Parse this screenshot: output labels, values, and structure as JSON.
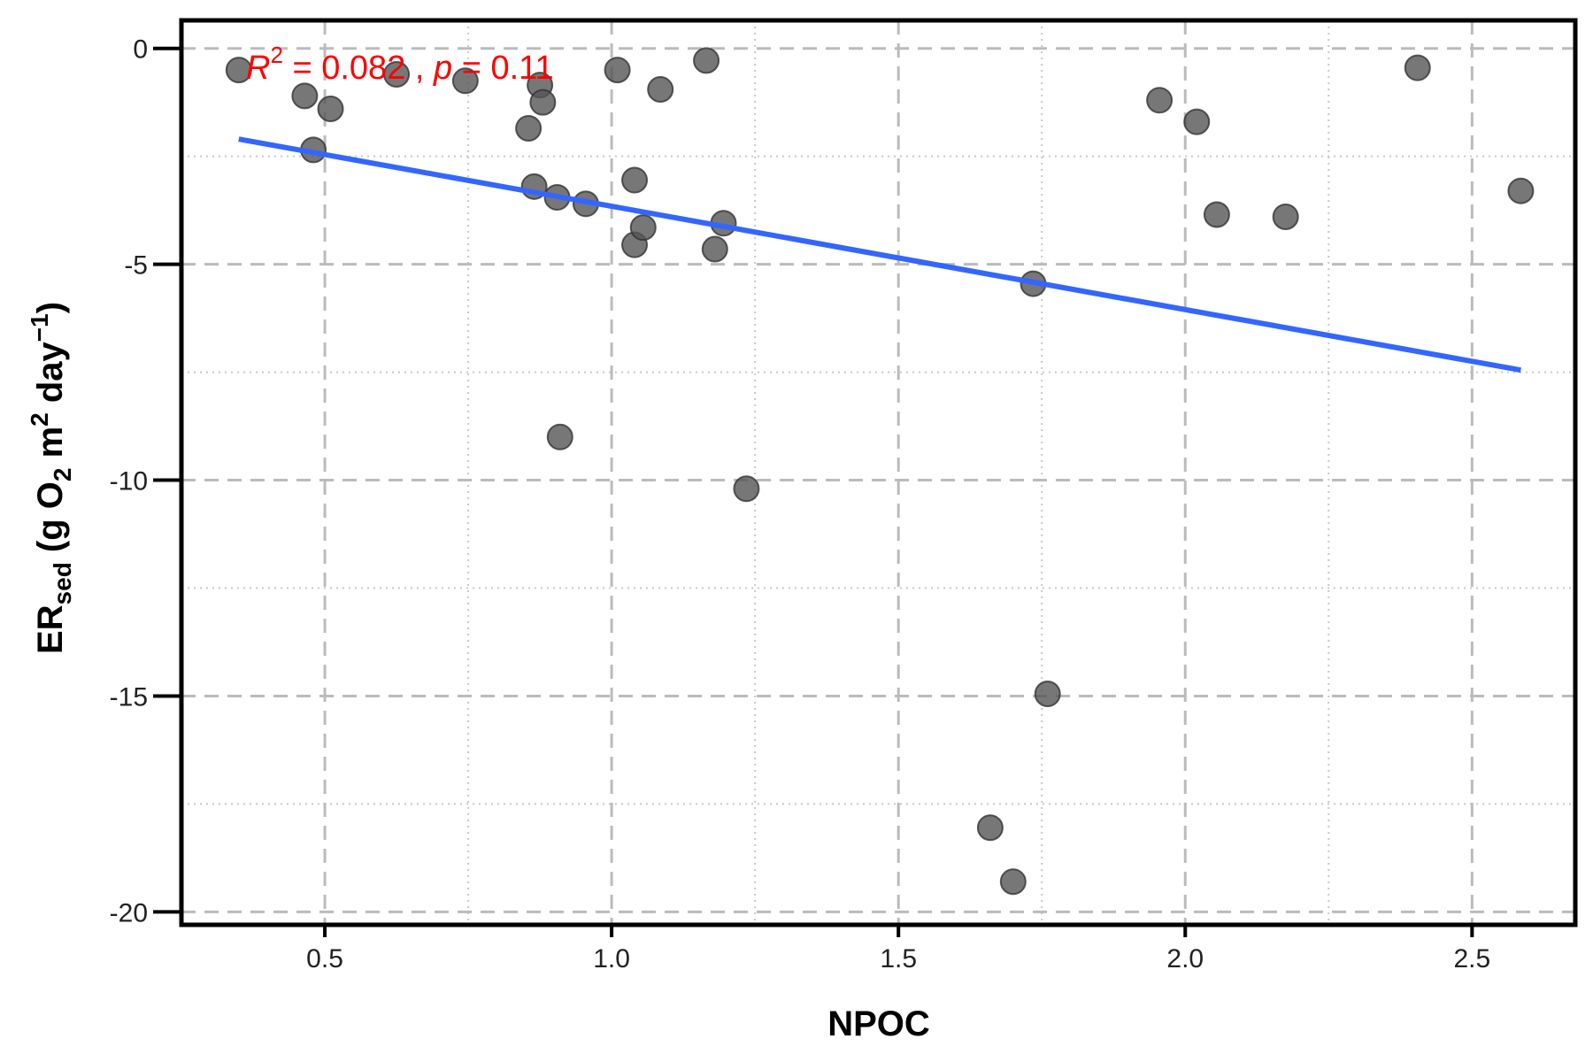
{
  "chart_data": {
    "type": "scatter",
    "title": "",
    "xlabel": "NPOC",
    "ylabel": {
      "main": "ER",
      "subscript": "sed",
      "unit_open": " (g O",
      "unit_o_sub": "2",
      "unit_m": " m",
      "unit_m_sup": "2",
      "unit_day": " day",
      "unit_day_sup": "−1",
      "unit_close": ")"
    },
    "xlim": [
      0.25,
      2.68
    ],
    "ylim": [
      -20.3,
      0.65
    ],
    "x_ticks": [
      0.5,
      1.0,
      1.5,
      2.0,
      2.5
    ],
    "x_tick_labels": [
      "0.5",
      "1.0",
      "1.5",
      "2.0",
      "2.5"
    ],
    "x_minor_ticks": [
      0.75,
      1.25,
      1.75,
      2.25
    ],
    "y_ticks": [
      0,
      -5,
      -10,
      -15,
      -20
    ],
    "y_tick_labels": [
      "0",
      "-5",
      "-10",
      "-15",
      "-20"
    ],
    "y_minor_ticks": [
      -2.5,
      -7.5,
      -12.5,
      -17.5
    ],
    "grid": true,
    "points": [
      {
        "x": 0.35,
        "y": -0.5
      },
      {
        "x": 0.465,
        "y": -1.1
      },
      {
        "x": 0.48,
        "y": -2.35
      },
      {
        "x": 0.51,
        "y": -1.4
      },
      {
        "x": 0.625,
        "y": -0.6
      },
      {
        "x": 0.745,
        "y": -0.75
      },
      {
        "x": 0.855,
        "y": -1.85
      },
      {
        "x": 0.865,
        "y": -3.2
      },
      {
        "x": 0.875,
        "y": -0.85
      },
      {
        "x": 0.88,
        "y": -1.25
      },
      {
        "x": 0.905,
        "y": -3.45
      },
      {
        "x": 0.91,
        "y": -9.0
      },
      {
        "x": 0.955,
        "y": -3.6
      },
      {
        "x": 1.01,
        "y": -0.5
      },
      {
        "x": 1.04,
        "y": -3.05
      },
      {
        "x": 1.04,
        "y": -4.55
      },
      {
        "x": 1.055,
        "y": -4.15
      },
      {
        "x": 1.085,
        "y": -0.95
      },
      {
        "x": 1.165,
        "y": -0.28
      },
      {
        "x": 1.18,
        "y": -4.65
      },
      {
        "x": 1.195,
        "y": -4.05
      },
      {
        "x": 1.235,
        "y": -10.2
      },
      {
        "x": 1.66,
        "y": -18.05
      },
      {
        "x": 1.7,
        "y": -19.3
      },
      {
        "x": 1.735,
        "y": -5.45
      },
      {
        "x": 1.76,
        "y": -14.95
      },
      {
        "x": 1.955,
        "y": -1.2
      },
      {
        "x": 2.02,
        "y": -1.7
      },
      {
        "x": 2.055,
        "y": -3.85
      },
      {
        "x": 2.175,
        "y": -3.9
      },
      {
        "x": 2.405,
        "y": -0.45
      },
      {
        "x": 2.585,
        "y": -3.3
      }
    ],
    "fit_line": {
      "x": [
        0.35,
        2.585
      ],
      "y": [
        -2.1,
        -7.45
      ]
    },
    "annotation": {
      "r_symbol": "R",
      "r_sup": "2",
      "r_rest": " = 0.082 , ",
      "p_symbol": "p",
      "p_rest": " = 0.11"
    },
    "colors": {
      "points": "#555555",
      "point_stroke": "#333333",
      "fit_line": "#3366ff",
      "annotation": "#ff0000",
      "major_grid": "#bbbbbb",
      "minor_grid": "#c8c8c8"
    }
  }
}
